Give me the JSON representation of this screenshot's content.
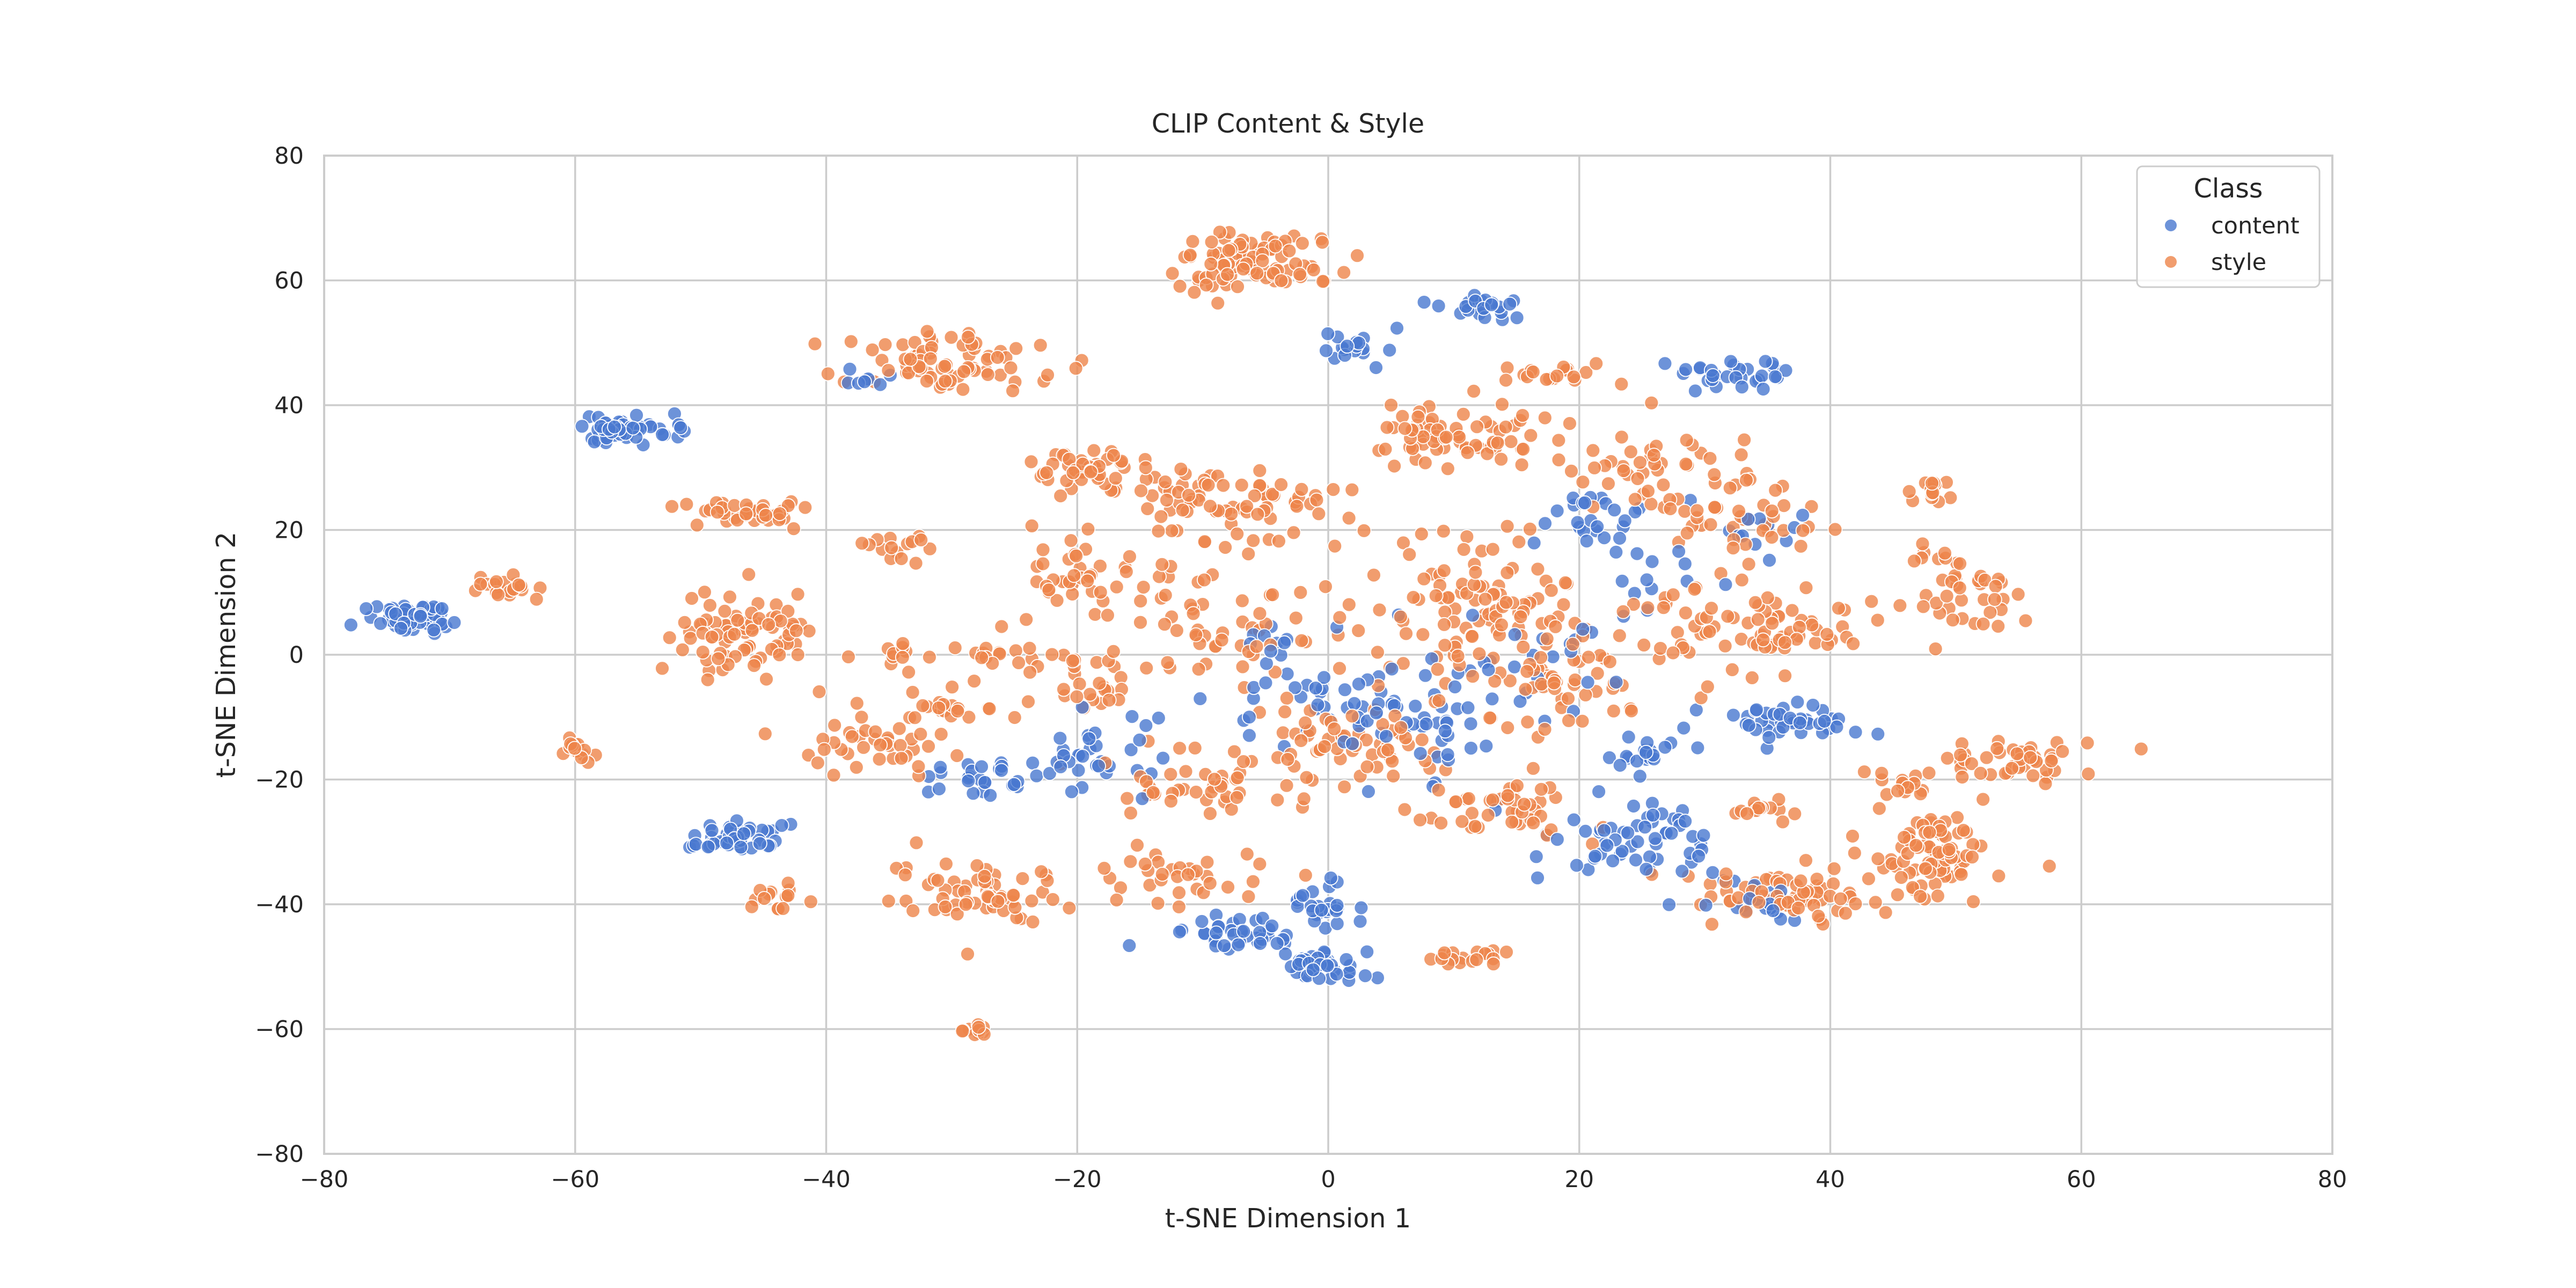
{
  "chart_data": {
    "type": "scatter",
    "title": "CLIP Content & Style",
    "xlabel": "t-SNE Dimension 1",
    "ylabel": "t-SNE Dimension 2",
    "xlim": [
      -80,
      80
    ],
    "ylim": [
      -80,
      80
    ],
    "xticks": [
      -80,
      -60,
      -40,
      -20,
      0,
      20,
      40,
      60,
      80
    ],
    "yticks": [
      -80,
      -60,
      -40,
      -20,
      0,
      20,
      40,
      60,
      80
    ],
    "tick_labels_x": [
      "−80",
      "−60",
      "−40",
      "−20",
      "0",
      "20",
      "40",
      "60",
      "80"
    ],
    "tick_labels_y": [
      "−80",
      "−60",
      "−40",
      "−20",
      "0",
      "20",
      "40",
      "60",
      "80"
    ],
    "grid": true,
    "legend": {
      "title": "Class",
      "placement": "top-right"
    },
    "series": [
      {
        "name": "content",
        "color": "#4878d0",
        "clusters": [
          {
            "cx": -73,
            "cy": 6,
            "sx": 2.0,
            "sy": 1.2,
            "n": 55
          },
          {
            "cx": -56,
            "cy": 36,
            "sx": 1.8,
            "sy": 1.1,
            "n": 50
          },
          {
            "cx": -47,
            "cy": -29,
            "sx": 2.0,
            "sy": 1.5,
            "n": 45
          },
          {
            "cx": -28,
            "cy": -20,
            "sx": 2.2,
            "sy": 1.5,
            "n": 25
          },
          {
            "cx": -20,
            "cy": -15,
            "sx": 3.0,
            "sy": 3.5,
            "n": 35
          },
          {
            "cx": -8,
            "cy": -45,
            "sx": 2.2,
            "sy": 1.5,
            "n": 40
          },
          {
            "cx": 0,
            "cy": -50,
            "sx": 1.6,
            "sy": 1.3,
            "n": 40
          },
          {
            "cx": 0,
            "cy": -40,
            "sx": 1.6,
            "sy": 2.0,
            "n": 25
          },
          {
            "cx": 2,
            "cy": 49,
            "sx": 1.4,
            "sy": 1.2,
            "n": 18
          },
          {
            "cx": 12,
            "cy": 56,
            "sx": 2.0,
            "sy": 1.0,
            "n": 25
          },
          {
            "cx": 33,
            "cy": 45,
            "sx": 2.0,
            "sy": 1.2,
            "n": 30
          },
          {
            "cx": 25,
            "cy": -30,
            "sx": 3.5,
            "sy": 3.0,
            "n": 60
          },
          {
            "cx": 37,
            "cy": -11,
            "sx": 2.5,
            "sy": 1.6,
            "n": 40
          },
          {
            "cx": 25,
            "cy": -16,
            "sx": 1.4,
            "sy": 1.5,
            "n": 20
          },
          {
            "cx": 21,
            "cy": 22,
            "sx": 2.5,
            "sy": 3.0,
            "n": 25
          },
          {
            "cx": 0,
            "cy": -8,
            "sx": 5.0,
            "sy": 4.0,
            "n": 50
          },
          {
            "cx": 8,
            "cy": -15,
            "sx": 4.0,
            "sy": 4.0,
            "n": 30
          },
          {
            "cx": 15,
            "cy": 0,
            "sx": 5.0,
            "sy": 5.0,
            "n": 25
          },
          {
            "cx": 35,
            "cy": -40,
            "sx": 2.0,
            "sy": 1.5,
            "n": 20
          },
          {
            "cx": 30,
            "cy": 15,
            "sx": 4.0,
            "sy": 3.0,
            "n": 15
          },
          {
            "cx": -36,
            "cy": 44,
            "sx": 1.5,
            "sy": 1.0,
            "n": 8
          },
          {
            "cx": -5,
            "cy": 2,
            "sx": 2.0,
            "sy": 2.0,
            "n": 10
          },
          {
            "cx": 35,
            "cy": 20,
            "sx": 2.0,
            "sy": 1.5,
            "n": 8
          }
        ]
      },
      {
        "name": "style",
        "color": "#ee854a",
        "clusters": [
          {
            "cx": -65,
            "cy": 11,
            "sx": 1.5,
            "sy": 0.9,
            "n": 22
          },
          {
            "cx": -60,
            "cy": -15,
            "sx": 1.0,
            "sy": 1.0,
            "n": 15
          },
          {
            "cx": -46,
            "cy": 23,
            "sx": 2.2,
            "sy": 1.2,
            "n": 40
          },
          {
            "cx": -47,
            "cy": 3,
            "sx": 3.0,
            "sy": 3.5,
            "n": 85
          },
          {
            "cx": -44,
            "cy": -39,
            "sx": 1.2,
            "sy": 1.0,
            "n": 15
          },
          {
            "cx": -36,
            "cy": -15,
            "sx": 3.0,
            "sy": 2.5,
            "n": 40
          },
          {
            "cx": -31,
            "cy": 47,
            "sx": 4.0,
            "sy": 2.5,
            "n": 75
          },
          {
            "cx": -28,
            "cy": -38,
            "sx": 3.0,
            "sy": 2.5,
            "n": 60
          },
          {
            "cx": -28,
            "cy": -60,
            "sx": 0.8,
            "sy": 0.6,
            "n": 12
          },
          {
            "cx": -20,
            "cy": 30,
            "sx": 2.5,
            "sy": 2.0,
            "n": 45
          },
          {
            "cx": -20,
            "cy": 12,
            "sx": 3.0,
            "sy": 4.0,
            "n": 40
          },
          {
            "cx": -20,
            "cy": -5,
            "sx": 3.0,
            "sy": 3.0,
            "n": 30
          },
          {
            "cx": -6,
            "cy": 63,
            "sx": 2.8,
            "sy": 2.5,
            "n": 95
          },
          {
            "cx": -8,
            "cy": 24,
            "sx": 5.0,
            "sy": 3.0,
            "n": 80
          },
          {
            "cx": -10,
            "cy": -20,
            "sx": 4.0,
            "sy": 3.0,
            "n": 45
          },
          {
            "cx": -12,
            "cy": -35,
            "sx": 3.5,
            "sy": 2.0,
            "n": 35
          },
          {
            "cx": -8,
            "cy": 5,
            "sx": 5.0,
            "sy": 6.0,
            "n": 60
          },
          {
            "cx": 10,
            "cy": 35,
            "sx": 3.5,
            "sy": 2.5,
            "n": 75
          },
          {
            "cx": 12,
            "cy": 8,
            "sx": 5.0,
            "sy": 6.0,
            "n": 110
          },
          {
            "cx": 2,
            "cy": -15,
            "sx": 4.0,
            "sy": 4.0,
            "n": 60
          },
          {
            "cx": 14,
            "cy": -24,
            "sx": 3.0,
            "sy": 2.5,
            "n": 45
          },
          {
            "cx": 18,
            "cy": -5,
            "sx": 4.0,
            "sy": 4.0,
            "n": 50
          },
          {
            "cx": 26,
            "cy": 30,
            "sx": 4.0,
            "sy": 4.0,
            "n": 45
          },
          {
            "cx": 33,
            "cy": 22,
            "sx": 3.0,
            "sy": 3.0,
            "n": 40
          },
          {
            "cx": 30,
            "cy": 5,
            "sx": 5.0,
            "sy": 4.0,
            "n": 45
          },
          {
            "cx": 38,
            "cy": 4,
            "sx": 2.5,
            "sy": 2.0,
            "n": 35
          },
          {
            "cx": 48,
            "cy": 26,
            "sx": 1.2,
            "sy": 1.0,
            "n": 15
          },
          {
            "cx": 50,
            "cy": 10,
            "sx": 2.5,
            "sy": 3.5,
            "n": 45
          },
          {
            "cx": 48,
            "cy": -32,
            "sx": 2.5,
            "sy": 3.5,
            "n": 85
          },
          {
            "cx": 55,
            "cy": -17,
            "sx": 3.0,
            "sy": 1.5,
            "n": 45
          },
          {
            "cx": 35,
            "cy": -38,
            "sx": 3.0,
            "sy": 2.0,
            "n": 55
          },
          {
            "cx": 35,
            "cy": -25,
            "sx": 1.5,
            "sy": 1.0,
            "n": 15
          },
          {
            "cx": 12,
            "cy": -48,
            "sx": 2.0,
            "sy": 0.8,
            "n": 18
          },
          {
            "cx": 17,
            "cy": 45,
            "sx": 2.0,
            "sy": 1.0,
            "n": 18
          },
          {
            "cx": -34,
            "cy": 17,
            "sx": 1.5,
            "sy": 1.0,
            "n": 15
          },
          {
            "cx": -30,
            "cy": -8,
            "sx": 2.0,
            "sy": 1.0,
            "n": 18
          },
          {
            "cx": -27,
            "cy": 0,
            "sx": 1.5,
            "sy": 1.0,
            "n": 12
          },
          {
            "cx": -34,
            "cy": 0,
            "sx": 1.2,
            "sy": 1.0,
            "n": 10
          },
          {
            "cx": 45,
            "cy": -20,
            "sx": 1.5,
            "sy": 1.0,
            "n": 15
          },
          {
            "cx": 40,
            "cy": -40,
            "sx": 3.0,
            "sy": 1.5,
            "n": 15
          }
        ]
      }
    ]
  }
}
